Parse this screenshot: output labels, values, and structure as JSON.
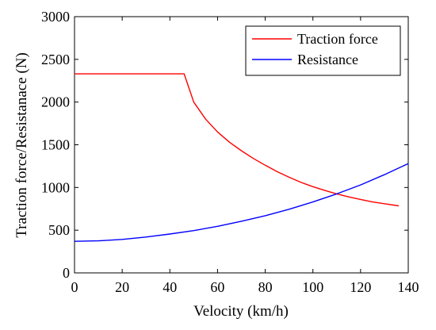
{
  "chart_data": {
    "type": "line",
    "title": "",
    "xlabel": "Velocity (km/h)",
    "ylabel": "Traction force/Resistanace (N)",
    "xlim": [
      0,
      140
    ],
    "ylim": [
      0,
      3000
    ],
    "xticks": [
      "0",
      "20",
      "40",
      "60",
      "80",
      "100",
      "120",
      "140"
    ],
    "yticks": [
      "0",
      "500",
      "1000",
      "1500",
      "2000",
      "2500",
      "3000"
    ],
    "grid": false,
    "legend_position": "top-right",
    "series": [
      {
        "name": "Traction force",
        "color": "#ff0000",
        "x": [
          0,
          46,
          50,
          55,
          60,
          65,
          70,
          75,
          80,
          85,
          90,
          95,
          100,
          105,
          110,
          115,
          120,
          125,
          130,
          136
        ],
        "y": [
          2330,
          2330,
          2000,
          1800,
          1650,
          1530,
          1430,
          1340,
          1260,
          1185,
          1120,
          1060,
          1010,
          965,
          925,
          890,
          860,
          830,
          810,
          785
        ]
      },
      {
        "name": "Resistance",
        "color": "#0000ff",
        "x": [
          0,
          10,
          20,
          30,
          40,
          50,
          60,
          70,
          80,
          90,
          100,
          110,
          120,
          130,
          140
        ],
        "y": [
          370,
          375,
          392,
          420,
          455,
          495,
          545,
          605,
          670,
          745,
          830,
          925,
          1030,
          1150,
          1280
        ]
      }
    ]
  }
}
